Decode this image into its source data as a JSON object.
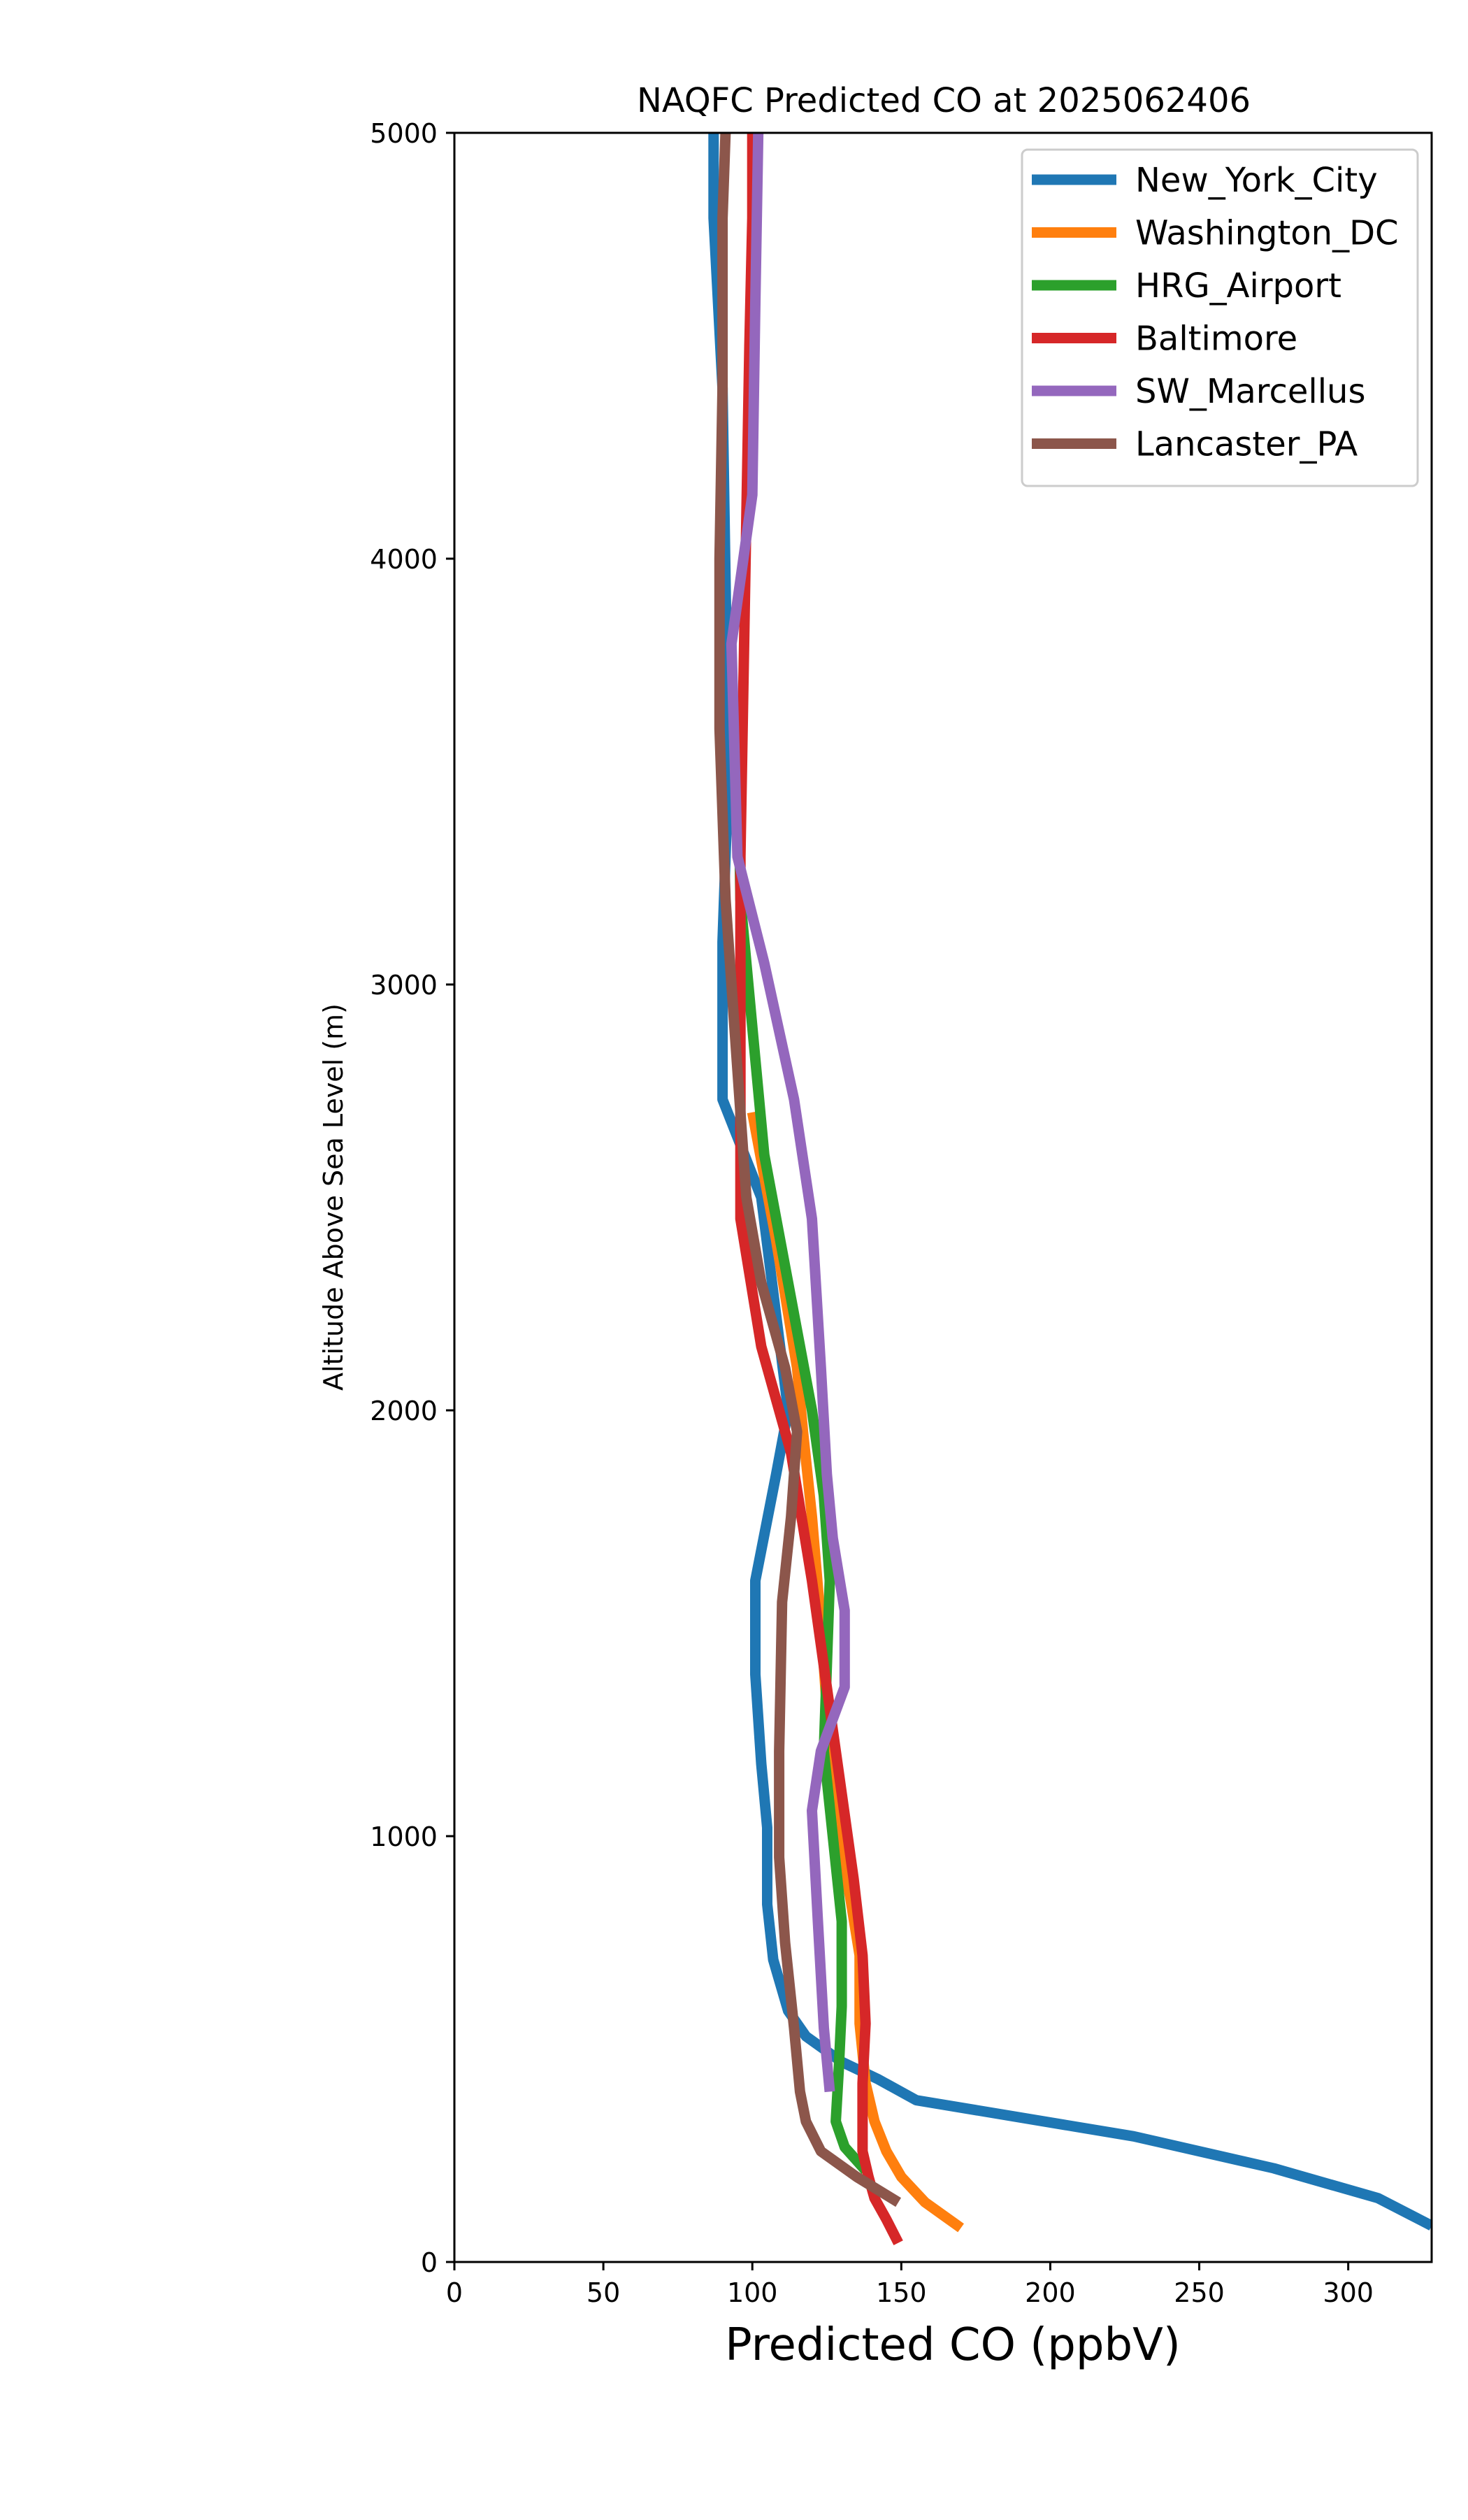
{
  "chart_data": {
    "type": "line",
    "title": "NAQFC Predicted CO at 2025062406",
    "xlabel": "Predicted CO (ppbV)",
    "ylabel": "Altitude Above Sea Level (m)",
    "xlim": [
      0,
      328
    ],
    "ylim": [
      0,
      5000
    ],
    "xticks": [
      "0",
      "50",
      "100",
      "150",
      "200",
      "250",
      "300"
    ],
    "yticks": [
      "0",
      "1000",
      "2000",
      "3000",
      "4000",
      "5000"
    ],
    "grid": false,
    "legend_position": "top-right",
    "series": [
      {
        "name": "New_York_City",
        "color": "#1f77b4",
        "points": [
          [
            328,
            85
          ],
          [
            310,
            150
          ],
          [
            275,
            220
          ],
          [
            228,
            295
          ],
          [
            155,
            380
          ],
          [
            142,
            430
          ],
          [
            130,
            470
          ],
          [
            118,
            530
          ],
          [
            112,
            590
          ],
          [
            107,
            710
          ],
          [
            105,
            840
          ],
          [
            105,
            1020
          ],
          [
            103,
            1170
          ],
          [
            101,
            1380
          ],
          [
            101,
            1600
          ],
          [
            108,
            1850
          ],
          [
            112,
            2000
          ],
          [
            103,
            2500
          ],
          [
            90,
            2730
          ],
          [
            90,
            3100
          ],
          [
            92,
            3500
          ],
          [
            90,
            4400
          ],
          [
            87,
            4800
          ],
          [
            87,
            5000
          ]
        ]
      },
      {
        "name": "Washington_DC",
        "color": "#ff7f0e",
        "points": [
          [
            170,
            80
          ],
          [
            158,
            140
          ],
          [
            150,
            200
          ],
          [
            145,
            260
          ],
          [
            141,
            330
          ],
          [
            138,
            420
          ],
          [
            136,
            560
          ],
          [
            136,
            720
          ],
          [
            133,
            850
          ],
          [
            129,
            1000
          ],
          [
            126,
            1200
          ],
          [
            123,
            1500
          ],
          [
            120,
            1750
          ],
          [
            117,
            1950
          ],
          [
            115,
            2100
          ],
          [
            108,
            2400
          ],
          [
            100,
            2700
          ]
        ]
      },
      {
        "name": "HRG_Airport",
        "color": "#2ca02c",
        "points": [
          [
            138,
            215
          ],
          [
            131,
            270
          ],
          [
            128,
            330
          ],
          [
            129,
            450
          ],
          [
            130,
            600
          ],
          [
            130,
            800
          ],
          [
            127,
            1000
          ],
          [
            124,
            1200
          ],
          [
            125,
            1400
          ],
          [
            126,
            1600
          ],
          [
            124,
            1800
          ],
          [
            120,
            2000
          ],
          [
            112,
            2300
          ],
          [
            104,
            2600
          ],
          [
            100,
            2900
          ],
          [
            96,
            3200
          ],
          [
            95,
            3600
          ]
        ]
      },
      {
        "name": "Baltimore",
        "color": "#d62728",
        "points": [
          [
            149,
            45
          ],
          [
            145,
            100
          ],
          [
            141,
            150
          ],
          [
            139,
            200
          ],
          [
            137,
            260
          ],
          [
            137,
            330
          ],
          [
            137,
            420
          ],
          [
            138,
            560
          ],
          [
            137,
            720
          ],
          [
            134,
            900
          ],
          [
            130,
            1100
          ],
          [
            126,
            1300
          ],
          [
            120,
            1600
          ],
          [
            113,
            1900
          ],
          [
            103,
            2150
          ],
          [
            96,
            2450
          ],
          [
            96,
            2800
          ],
          [
            96,
            3300
          ],
          [
            97,
            3700
          ],
          [
            98,
            4100
          ],
          [
            99,
            4500
          ],
          [
            100,
            4800
          ],
          [
            100,
            5000
          ]
        ]
      },
      {
        "name": "SW_Marcellus",
        "color": "#9467bd",
        "points": [
          [
            126,
            400
          ],
          [
            124,
            550
          ],
          [
            122,
            800
          ],
          [
            120,
            1060
          ],
          [
            123,
            1200
          ],
          [
            131,
            1350
          ],
          [
            131,
            1530
          ],
          [
            127,
            1700
          ],
          [
            125,
            1850
          ],
          [
            123,
            2100
          ],
          [
            120,
            2450
          ],
          [
            114,
            2730
          ],
          [
            104,
            3050
          ],
          [
            95,
            3300
          ],
          [
            93,
            3800
          ],
          [
            100,
            4150
          ],
          [
            101,
            4600
          ],
          [
            102,
            5000
          ]
        ]
      },
      {
        "name": "Lancaster_PA",
        "color": "#8c564b",
        "points": [
          [
            149,
            140
          ],
          [
            135,
            200
          ],
          [
            123,
            260
          ],
          [
            118,
            330
          ],
          [
            116,
            400
          ],
          [
            114,
            550
          ],
          [
            111,
            750
          ],
          [
            109,
            950
          ],
          [
            109,
            1200
          ],
          [
            110,
            1550
          ],
          [
            113,
            1750
          ],
          [
            115,
            1950
          ],
          [
            111,
            2100
          ],
          [
            103,
            2300
          ],
          [
            98,
            2500
          ],
          [
            94,
            2900
          ],
          [
            91,
            3200
          ],
          [
            89,
            3600
          ],
          [
            89,
            4000
          ],
          [
            90,
            4400
          ],
          [
            90,
            4800
          ],
          [
            91,
            5000
          ]
        ]
      }
    ]
  }
}
